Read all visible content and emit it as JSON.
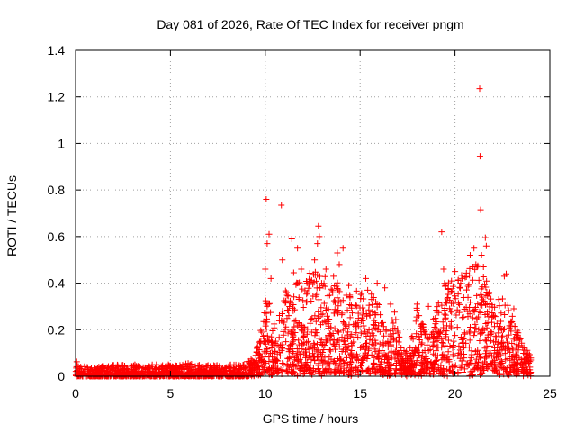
{
  "colors": {
    "series": "#ff0000",
    "grid": "#a0a0a0",
    "axis": "#000000"
  },
  "chart_data": {
    "type": "scatter",
    "title": "Day 081 of 2026, Rate Of TEC Index for receiver pngm",
    "xlabel": "GPS time / hours",
    "ylabel": "ROTI / TECUs",
    "xlim": [
      0,
      25
    ],
    "ylim": [
      0,
      1.4
    ],
    "grid": true,
    "marker": "+",
    "xticks": [
      0,
      5,
      10,
      15,
      20,
      25
    ],
    "xtick_labels": [
      "0",
      "5",
      "10",
      "15",
      "20",
      "25"
    ],
    "yticks": [
      0,
      0.2,
      0.4,
      0.6,
      0.8,
      1,
      1.2,
      1.4
    ],
    "ytick_labels": [
      "0",
      "0.2",
      "0.4",
      "0.6",
      "0.8",
      "1",
      "1.2",
      "1.4"
    ],
    "series": [
      {
        "name": "ROTI",
        "baseline_level": {
          "hours": [
            0,
            9.5
          ],
          "typical_max": 0.07
        },
        "active_level": {
          "hours": [
            9.5,
            24
          ],
          "typical_max": 0.45
        },
        "envelope": [
          [
            0.0,
            0.07
          ],
          [
            0.5,
            0.04
          ],
          [
            1.0,
            0.04
          ],
          [
            2.0,
            0.05
          ],
          [
            3.0,
            0.05
          ],
          [
            4.0,
            0.05
          ],
          [
            5.0,
            0.05
          ],
          [
            5.8,
            0.06
          ],
          [
            6.5,
            0.05
          ],
          [
            7.5,
            0.05
          ],
          [
            8.5,
            0.05
          ],
          [
            9.2,
            0.07
          ],
          [
            9.6,
            0.12
          ],
          [
            10.0,
            0.3
          ],
          [
            10.3,
            0.4
          ],
          [
            10.6,
            0.18
          ],
          [
            10.8,
            0.3
          ],
          [
            11.2,
            0.4
          ],
          [
            11.6,
            0.45
          ],
          [
            12.0,
            0.4
          ],
          [
            12.5,
            0.45
          ],
          [
            13.0,
            0.42
          ],
          [
            13.5,
            0.4
          ],
          [
            14.0,
            0.38
          ],
          [
            14.5,
            0.37
          ],
          [
            15.0,
            0.35
          ],
          [
            15.5,
            0.37
          ],
          [
            16.0,
            0.32
          ],
          [
            16.5,
            0.15
          ],
          [
            16.8,
            0.3
          ],
          [
            17.2,
            0.1
          ],
          [
            17.6,
            0.1
          ],
          [
            18.0,
            0.3
          ],
          [
            18.5,
            0.18
          ],
          [
            19.0,
            0.3
          ],
          [
            19.5,
            0.4
          ],
          [
            20.0,
            0.42
          ],
          [
            20.5,
            0.45
          ],
          [
            21.0,
            0.48
          ],
          [
            21.5,
            0.44
          ],
          [
            22.0,
            0.3
          ],
          [
            22.5,
            0.32
          ],
          [
            23.0,
            0.28
          ],
          [
            23.5,
            0.14
          ],
          [
            24.0,
            0.08
          ]
        ],
        "peaks": [
          [
            10.05,
            0.76
          ],
          [
            10.2,
            0.61
          ],
          [
            10.1,
            0.57
          ],
          [
            10.0,
            0.46
          ],
          [
            10.3,
            0.42
          ],
          [
            10.85,
            0.735
          ],
          [
            10.9,
            0.5
          ],
          [
            11.4,
            0.59
          ],
          [
            11.7,
            0.55
          ],
          [
            11.9,
            0.46
          ],
          [
            12.2,
            0.4
          ],
          [
            12.6,
            0.5
          ],
          [
            12.8,
            0.645
          ],
          [
            12.85,
            0.6
          ],
          [
            12.75,
            0.57
          ],
          [
            13.2,
            0.46
          ],
          [
            13.6,
            0.43
          ],
          [
            13.8,
            0.53
          ],
          [
            13.9,
            0.48
          ],
          [
            14.1,
            0.55
          ],
          [
            14.4,
            0.39
          ],
          [
            15.3,
            0.42
          ],
          [
            15.4,
            0.37
          ],
          [
            15.9,
            0.4
          ],
          [
            16.3,
            0.38
          ],
          [
            16.6,
            0.31
          ],
          [
            18.0,
            0.31
          ],
          [
            18.6,
            0.3
          ],
          [
            19.3,
            0.62
          ],
          [
            19.4,
            0.46
          ],
          [
            20.0,
            0.45
          ],
          [
            20.3,
            0.4
          ],
          [
            20.8,
            0.52
          ],
          [
            21.0,
            0.55
          ],
          [
            21.1,
            0.48
          ],
          [
            21.3,
            1.235
          ],
          [
            21.32,
            0.945
          ],
          [
            21.35,
            0.715
          ],
          [
            21.4,
            0.52
          ],
          [
            21.5,
            0.47
          ],
          [
            21.6,
            0.595
          ],
          [
            21.65,
            0.56
          ],
          [
            21.8,
            0.36
          ],
          [
            22.3,
            0.33
          ],
          [
            22.6,
            0.43
          ],
          [
            22.7,
            0.44
          ],
          [
            23.1,
            0.29
          ]
        ]
      }
    ]
  }
}
